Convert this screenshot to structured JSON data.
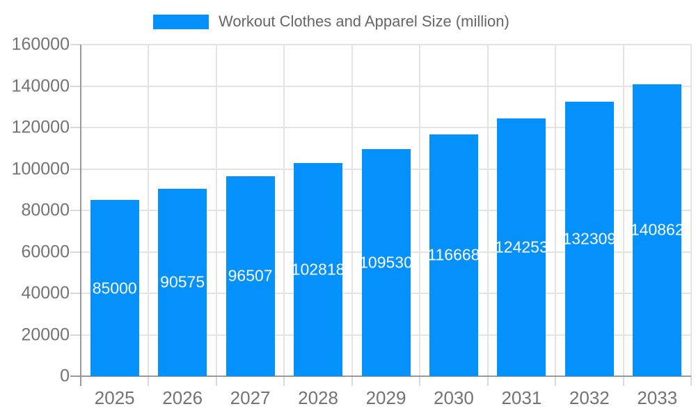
{
  "chart_data": {
    "type": "bar",
    "title": "Workout Clothes and Apparel Size (million)",
    "legend": {
      "label": "Workout Clothes and Apparel Size (million)",
      "position": "top-center"
    },
    "categories": [
      "2025",
      "2026",
      "2027",
      "2028",
      "2029",
      "2030",
      "2031",
      "2032",
      "2033"
    ],
    "series": [
      {
        "name": "Workout Clothes and Apparel Size (million)",
        "values": [
          85000,
          90575,
          96507,
          102818,
          109530,
          116668,
          124253,
          132309,
          140862
        ]
      }
    ],
    "bar_labels": [
      "85000",
      "90575",
      "96507",
      "102818",
      "109530",
      "116668",
      "124253",
      "132309",
      "140862"
    ],
    "xlabel": "",
    "ylabel": "",
    "ylim": [
      0,
      160000
    ],
    "yticks": [
      0,
      20000,
      40000,
      60000,
      80000,
      100000,
      120000,
      140000,
      160000
    ],
    "ytick_labels": [
      "0",
      "20000",
      "40000",
      "60000",
      "80000",
      "100000",
      "120000",
      "140000",
      "160000"
    ],
    "grid": true,
    "colors": {
      "bar": "#0591fb",
      "bar_label_text": "#ffffff",
      "grid_line": "#e3e3e3",
      "tick_line": "#d9d9d9",
      "axis_line": "#999999",
      "tick_text": "#737373",
      "legend_text": "#666666",
      "background": "#ffffff"
    }
  }
}
